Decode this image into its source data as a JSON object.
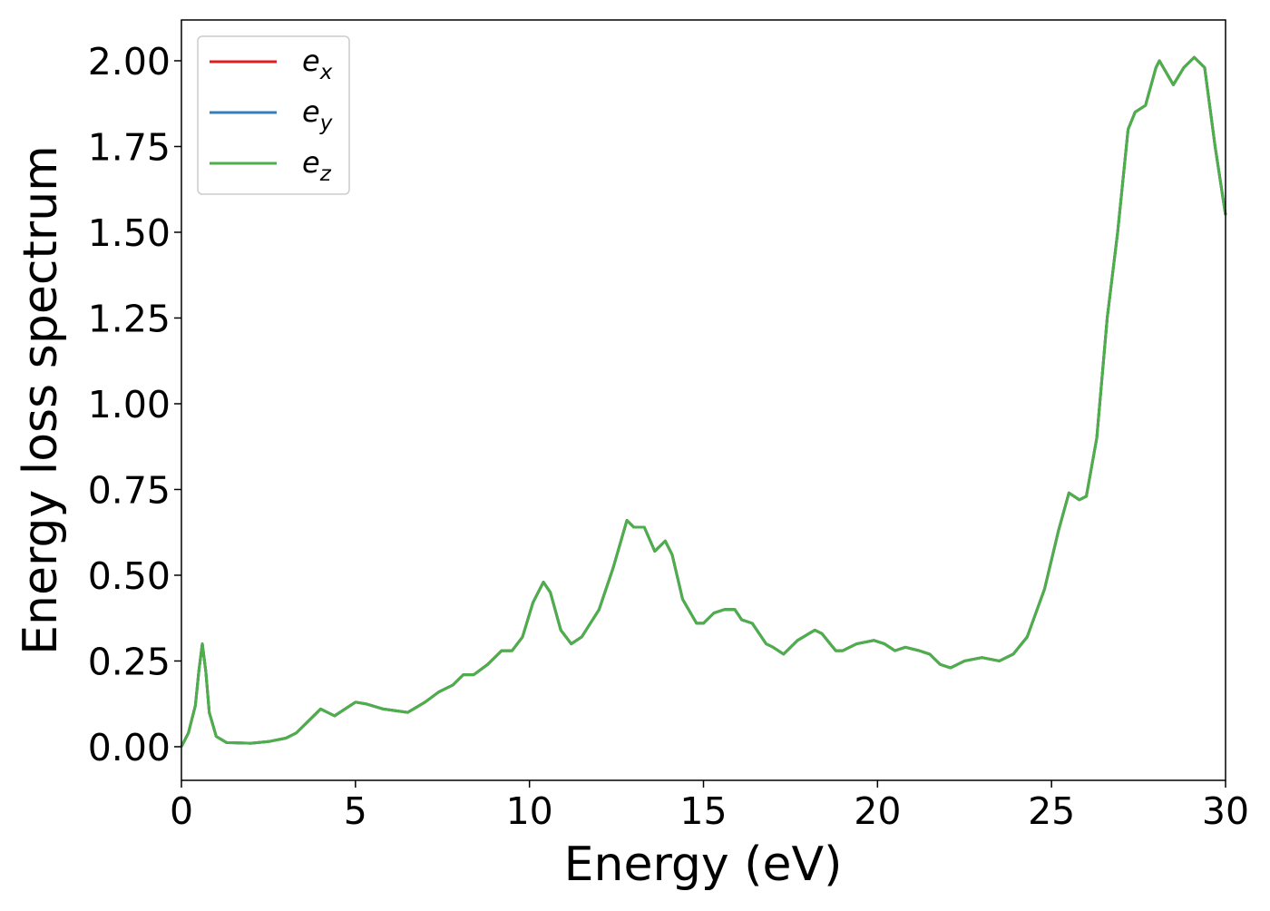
{
  "chart_data": {
    "type": "line",
    "x_label": "Energy (eV)",
    "y_label": "Energy loss spectrum",
    "x": [
      0,
      0.2,
      0.4,
      0.5,
      0.6,
      0.7,
      0.8,
      1.0,
      1.3,
      2,
      2.5,
      3,
      3.3,
      3.6,
      4.0,
      4.2,
      4.4,
      4.7,
      5.0,
      5.3,
      5.8,
      6.5,
      7.0,
      7.4,
      7.8,
      8.1,
      8.4,
      8.8,
      9.2,
      9.5,
      9.8,
      10.1,
      10.4,
      10.6,
      10.9,
      11.2,
      11.5,
      12.0,
      12.4,
      12.8,
      13.0,
      13.3,
      13.6,
      13.9,
      14.1,
      14.4,
      14.8,
      15.0,
      15.3,
      15.6,
      15.9,
      16.1,
      16.4,
      16.8,
      17.0,
      17.3,
      17.7,
      18.2,
      18.4,
      18.8,
      19.0,
      19.4,
      19.9,
      20.2,
      20.5,
      20.8,
      21.2,
      21.5,
      21.8,
      22.1,
      22.5,
      23.0,
      23.5,
      23.9,
      24.3,
      24.8,
      25.2,
      25.5,
      25.8,
      26.0,
      26.3,
      26.6,
      26.9,
      27.2,
      27.4,
      27.7,
      28.0,
      28.1,
      28.5,
      28.8,
      29.1,
      29.4,
      29.7,
      30.0
    ],
    "series": [
      {
        "name": "e_x",
        "color": "#e41a1c",
        "values": [
          0.0,
          0.04,
          0.12,
          0.22,
          0.3,
          0.22,
          0.1,
          0.03,
          0.012,
          0.01,
          0.015,
          0.025,
          0.04,
          0.07,
          0.11,
          0.1,
          0.09,
          0.11,
          0.13,
          0.125,
          0.11,
          0.1,
          0.13,
          0.16,
          0.18,
          0.21,
          0.21,
          0.24,
          0.28,
          0.28,
          0.32,
          0.42,
          0.48,
          0.45,
          0.34,
          0.3,
          0.32,
          0.4,
          0.52,
          0.66,
          0.64,
          0.64,
          0.57,
          0.6,
          0.56,
          0.43,
          0.36,
          0.36,
          0.39,
          0.4,
          0.4,
          0.37,
          0.36,
          0.3,
          0.29,
          0.27,
          0.31,
          0.34,
          0.33,
          0.28,
          0.28,
          0.3,
          0.31,
          0.3,
          0.28,
          0.29,
          0.28,
          0.27,
          0.24,
          0.23,
          0.25,
          0.26,
          0.25,
          0.27,
          0.32,
          0.46,
          0.63,
          0.74,
          0.72,
          0.73,
          0.9,
          1.25,
          1.5,
          1.8,
          1.85,
          1.87,
          1.98,
          2.0,
          1.93,
          1.98,
          2.01,
          1.98,
          1.75,
          1.55
        ]
      },
      {
        "name": "e_y",
        "color": "#377eb8",
        "values": [
          0.0,
          0.04,
          0.12,
          0.22,
          0.3,
          0.22,
          0.1,
          0.03,
          0.012,
          0.01,
          0.015,
          0.025,
          0.04,
          0.07,
          0.11,
          0.1,
          0.09,
          0.11,
          0.13,
          0.125,
          0.11,
          0.1,
          0.13,
          0.16,
          0.18,
          0.21,
          0.21,
          0.24,
          0.28,
          0.28,
          0.32,
          0.42,
          0.48,
          0.45,
          0.34,
          0.3,
          0.32,
          0.4,
          0.52,
          0.66,
          0.64,
          0.64,
          0.57,
          0.6,
          0.56,
          0.43,
          0.36,
          0.36,
          0.39,
          0.4,
          0.4,
          0.37,
          0.36,
          0.3,
          0.29,
          0.27,
          0.31,
          0.34,
          0.33,
          0.28,
          0.28,
          0.3,
          0.31,
          0.3,
          0.28,
          0.29,
          0.28,
          0.27,
          0.24,
          0.23,
          0.25,
          0.26,
          0.25,
          0.27,
          0.32,
          0.46,
          0.63,
          0.74,
          0.72,
          0.73,
          0.9,
          1.25,
          1.5,
          1.8,
          1.85,
          1.87,
          1.98,
          2.0,
          1.93,
          1.98,
          2.01,
          1.98,
          1.75,
          1.55
        ]
      },
      {
        "name": "e_z",
        "color": "#4daf4a",
        "values": [
          0.0,
          0.04,
          0.12,
          0.22,
          0.3,
          0.22,
          0.1,
          0.03,
          0.012,
          0.01,
          0.015,
          0.025,
          0.04,
          0.07,
          0.11,
          0.1,
          0.09,
          0.11,
          0.13,
          0.125,
          0.11,
          0.1,
          0.13,
          0.16,
          0.18,
          0.21,
          0.21,
          0.24,
          0.28,
          0.28,
          0.32,
          0.42,
          0.48,
          0.45,
          0.34,
          0.3,
          0.32,
          0.4,
          0.52,
          0.66,
          0.64,
          0.64,
          0.57,
          0.6,
          0.56,
          0.43,
          0.36,
          0.36,
          0.39,
          0.4,
          0.4,
          0.37,
          0.36,
          0.3,
          0.29,
          0.27,
          0.31,
          0.34,
          0.33,
          0.28,
          0.28,
          0.3,
          0.31,
          0.3,
          0.28,
          0.29,
          0.28,
          0.27,
          0.24,
          0.23,
          0.25,
          0.26,
          0.25,
          0.27,
          0.32,
          0.46,
          0.63,
          0.74,
          0.72,
          0.73,
          0.9,
          1.25,
          1.5,
          1.8,
          1.85,
          1.87,
          1.98,
          2.0,
          1.93,
          1.98,
          2.01,
          1.98,
          1.75,
          1.55
        ]
      }
    ],
    "xlim": [
      0,
      30
    ],
    "xticks": [
      0,
      5,
      10,
      15,
      20,
      25,
      30
    ],
    "ylim": [
      -0.098,
      2.119
    ],
    "yticks": [
      {
        "value": 0,
        "label": "0.00"
      },
      0.25,
      {
        "value": 0.5,
        "label": "0.50"
      },
      0.75,
      {
        "value": 1,
        "label": "1.00"
      },
      1.25,
      {
        "value": 1.5,
        "label": "1.50"
      },
      1.75,
      {
        "value": 2,
        "label": "2.00"
      }
    ],
    "grid": false,
    "legend": "upper left"
  }
}
